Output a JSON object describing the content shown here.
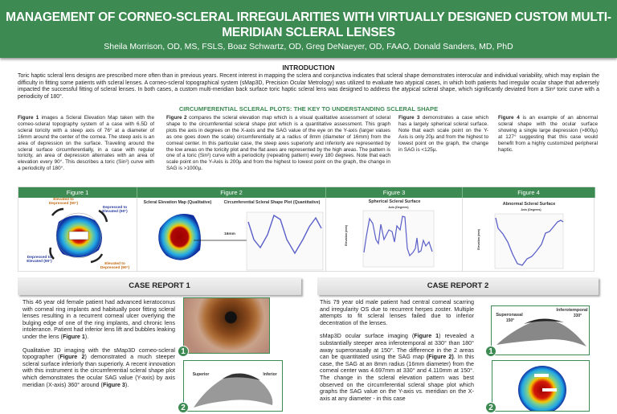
{
  "header": {
    "title": "MANAGEMENT OF CORNEO-SCLERAL IRREGULARITIES WITH VIRTUALLY DESIGNED CUSTOM MULTI-MERIDIAN SCLERAL LENSES",
    "authors": "Sheila Morrison, OD, MS, FSLS, Boaz Schwartz, OD,  Greg DeNaeyer, OD, FAAO, Donald Sanders, MD, PhD"
  },
  "intro": {
    "heading": "INTRODUCTION",
    "text": "Toric haptic scleral lens designs are prescribed more often than in previous years. Recent interest in mapping the sclera and conjunctiva indicates that scleral shape demonstrates interocular and individual variability, which may explain the difficulty in fitting some patients with scleral lenses. A corneo-scleral topographical system (sMap3D, Precision Ocular Metrology) was utilized to evaluate two atypical cases, in which both patients had irregular ocular shape that adversely impacted the successful fitting of scleral lenses. In both cases, a custom multi-meridian back surface toric haptic scleral lens was designed to address the atypical  scleral shape, which significantly deviated from a Sin² toric curve with a periodicity of 180°."
  },
  "circumferential": {
    "heading": "CIRCUMFERENTIAL SCLERAL PLOTS: THE KEY TO UNDERSTANDING SCLERAL SHAPE",
    "columns": [
      {
        "lead": "Figure 1",
        "text": " images a Scleral Elevation Map taken with the corneo-scleral topography system of a case with 6.5D of scleral toricity with a steep axis of 76° at a diameter of 16mm around the center of the cornea. The steep axis is an area of depression on the surface. Traveling around the scleral surface circumferentially, in a case with regular toricity, an area of depression alternates with an area of elevation every 90°. This describes a toric (Sin²) curve with a periodicity of 180°."
      },
      {
        "lead": "Figure 2",
        "text": " compares the scleral elevation map which is a visual qualitative assessment of scleral shape to the circumferential scleral shape plot which is a quantitative assessment. This graph plots the axis in degrees on the X-axis and the SAG value of the eye on the Y-axis (larger values as one goes down the scale) circumferentially at a radius of 8mm (diameter of 16mm) from the corneal center. In this particular case, the steep axes superiorly and inferiorly are represented by the low areas on the toricity plot and the flat axes are represented by the high areas. The pattern is one of a  toric (Sin²) curve with a periodicity (repeating pattern) every 180 degrees. Note that each scale point on the Y-Axis is 200µ and from the highest to lowest point on the graph, the change in SAG is >1000µ."
      },
      {
        "lead": "Figure 3",
        "text": " demonstrates a case which has a largely spherical scleral surface. Note that each scale point on the Y-Axis is only 20µ and from the highest to lowest point on the graph, the change in SAG is <125µ."
      },
      {
        "lead": "Figure 4",
        "text": " is an example of an abnormal scleral shape with the ocular surface showing a single large depression (>800µ) at 127° suggesting that this case would benefit from a  highly customized peripheral haptic."
      }
    ]
  },
  "figures": {
    "headers": [
      "Figure 1",
      "Figure 2",
      "Figure 3",
      "Figure 4"
    ],
    "fig1_labels": [
      "Elevated to Depressed (90°)",
      "Depressed to Elevated (90°)",
      "Depressed to Elevated (90°)",
      "Elevated to Depressed (90°)"
    ],
    "fig2_map_title": "Scleral Elevation Map (Qualitative)",
    "fig2_plot_title": "Circumferential Scleral Shape Plot (Quantitative)",
    "fig2_marker": "16mm",
    "fig3_title": "Spherical Scleral Surface",
    "fig4_title": "Abnormal Scleral Surface",
    "plot_x_label": "Axis (Degrees)",
    "plot_y_label": "Elevation (mm)"
  },
  "case1": {
    "heading": "CASE REPORT 1",
    "p1": "This 46 year old female patient had advanced keratoconus with corneal ring implants and habitually poor fitting scleral lenses resulting in a recurrent corneal ulcer overlying the bulging edge of one of the ring implants, and chronic lens intolerance. Patient had inferior lens lift and bubbles leaking under the lens (",
    "p1_ref": "Figure 1",
    "p1_end": ").",
    "p2": "Qualitative 3D imaging with the sMap3D corneo-scleral topographer (",
    "p2_ref": "Figure 2",
    "p2_mid": ") demonstrated a much steeper scleral surface inferiorly than superiorly. A recent innovation with this instrument is the circumferential scleral shape plot which demonstrates the ocular SAG value (Y-axis) by axis meridian (X-axis) 360° around (",
    "p2_ref2": "Figure 3",
    "p2_end": ").",
    "img2_left": "Superior",
    "img2_right": "Inferior",
    "badges": [
      "1",
      "2"
    ]
  },
  "case2": {
    "heading": "CASE REPORT 2",
    "p1": "This 79 year old male patient had central corneal scarring and irregularity OS due to recurrent herpes zoster. Multiple attempts to fit scleral lenses failed due to inferior decentration of the lenses.",
    "p2a": "sMap3D ocular surface imaging (",
    "p2_ref": "Figure 1",
    "p2b": ") revealed a substantially steeper area inferotemporal at 330° than 180° away superonasally at 150°. The difference in the 2 areas can be quantitated using the SAG map ",
    "p2_ref2": "(Figure 2)",
    "p2c": ". In this case, the SAG at an 8mm radius (16mm diameter) from the corneal center was 4.697mm at 330° and 4.110mm at 150°. The change in the scleral elevation pattern was best observed on the circumferential scleral shape plot which graphs the SAG value on the Y-axis vs. meridian on the X-axis at any diameter - in this case",
    "img1_left": "Superonasal",
    "img1_left_deg": "150°",
    "img1_right": "Inferotemporal",
    "img1_right_deg": "330°",
    "badges": [
      "1",
      "2"
    ]
  },
  "colors": {
    "brand_green": "#3d8a52",
    "series": "#5a5fc8"
  }
}
